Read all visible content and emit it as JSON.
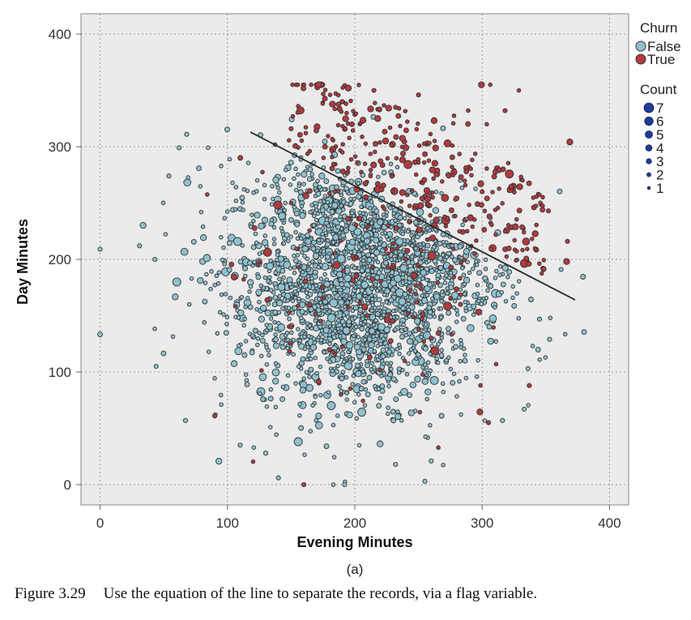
{
  "chart_data": {
    "type": "scatter",
    "xlabel": "Evening Minutes",
    "ylabel": "Day Minutes",
    "xlim": [
      -15,
      415
    ],
    "ylim": [
      -18,
      418
    ],
    "xticks": [
      0,
      100,
      200,
      300,
      400
    ],
    "yticks": [
      0,
      100,
      200,
      300,
      400
    ],
    "grid": true,
    "legend_placement": "right",
    "legends": {
      "color": {
        "title": "Churn",
        "entries": [
          {
            "label": "False",
            "color": "#8ec1d0"
          },
          {
            "label": "True",
            "color": "#b23a3e"
          }
        ]
      },
      "size": {
        "title": "Count",
        "entries": [
          "7",
          "6",
          "5",
          "4",
          "3",
          "2",
          "1"
        ],
        "color": "#1e3c96"
      }
    },
    "separating_line": {
      "x": [
        118,
        373
      ],
      "y": [
        313,
        164
      ]
    },
    "series": [
      {
        "name": "False",
        "color": "#8ec1d0",
        "distribution": {
          "n_points": 2300,
          "x_mean": 200,
          "x_sd": 50,
          "y_mean": 180,
          "y_sd": 55
        },
        "points": [
          [
            0,
            209
          ],
          [
            31,
            212
          ],
          [
            43,
            200
          ],
          [
            44,
            105
          ],
          [
            54,
            274
          ],
          [
            62,
            299
          ],
          [
            68,
            311
          ],
          [
            67,
            57
          ],
          [
            192,
            0
          ],
          [
            255,
            3
          ],
          [
            140,
            6
          ],
          [
            333,
            67
          ],
          [
            353,
            129
          ],
          [
            362,
            191
          ],
          [
            345,
            147
          ],
          [
            336,
            103
          ],
          [
            316,
            57
          ],
          [
            260,
            21
          ],
          [
            232,
            18
          ],
          [
            110,
            35
          ],
          [
            130,
            28
          ]
        ]
      },
      {
        "name": "True",
        "color": "#b23a3e",
        "distribution": {
          "n_points": 450,
          "x_mean": 225,
          "x_sd": 55,
          "y_mean": 205,
          "y_sd": 65
        },
        "points": [
          [
            215,
            350
          ],
          [
            250,
            346
          ],
          [
            318,
            332
          ],
          [
            232,
            335
          ],
          [
            352,
            243
          ],
          [
            367,
            216
          ],
          [
            160,
            0
          ],
          [
            305,
            55
          ],
          [
            337,
            88
          ],
          [
            90,
            61
          ],
          [
            150,
            316
          ],
          [
            190,
            340
          ],
          [
            300,
            260
          ],
          [
            283,
            160
          ],
          [
            175,
            175
          ],
          [
            210,
            150
          ],
          [
            240,
            200
          ],
          [
            180,
            120
          ],
          [
            150,
            140
          ],
          [
            260,
            130
          ]
        ]
      }
    ]
  },
  "panel_label": "(a)",
  "caption": {
    "number": "Figure 3.29",
    "text": "Use the equation of the line to separate the records, via a flag variable."
  }
}
